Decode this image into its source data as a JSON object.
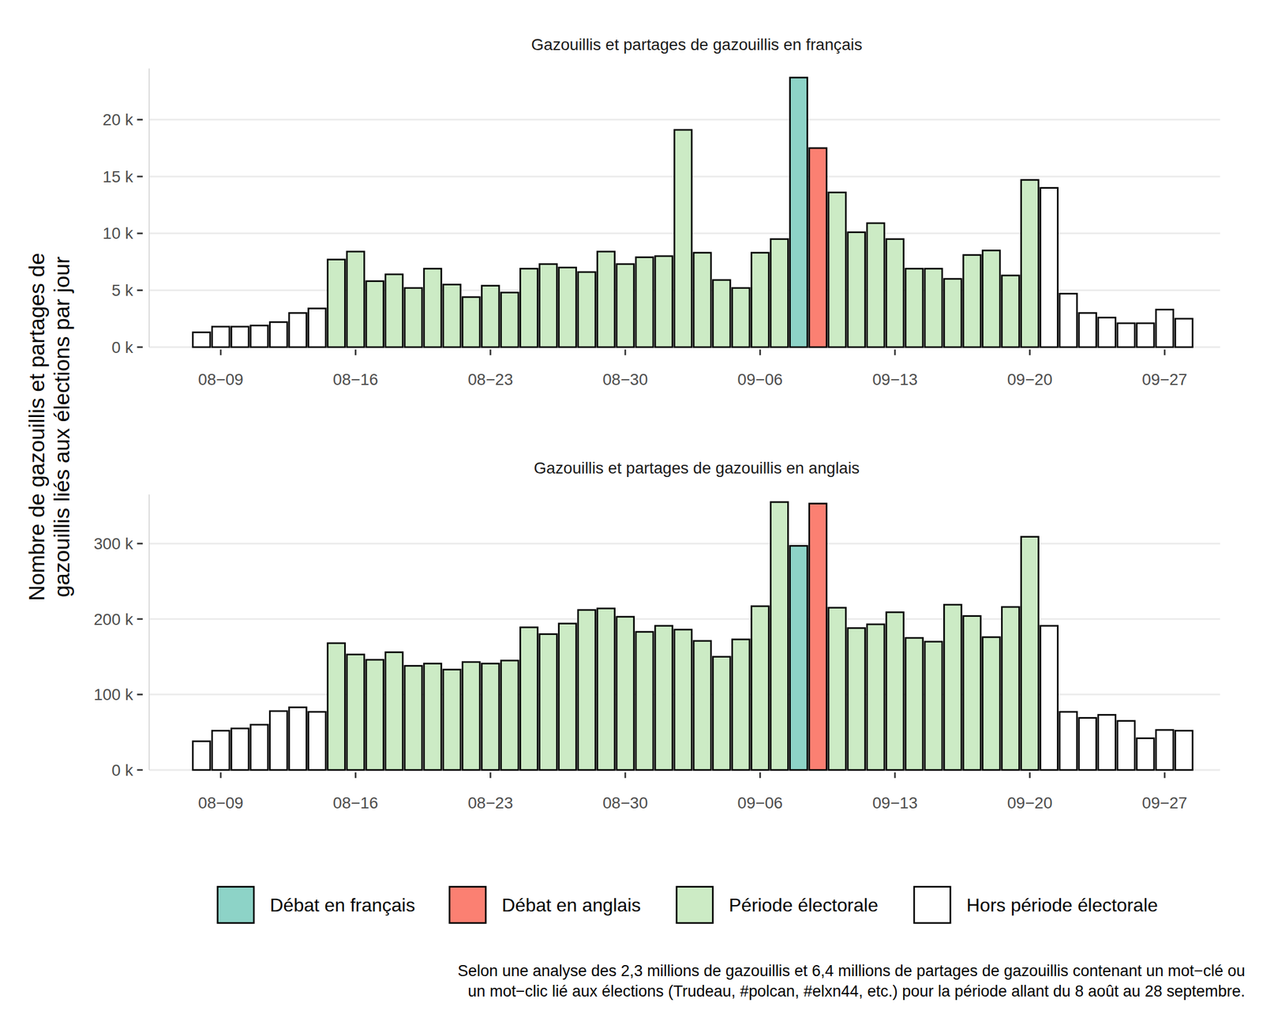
{
  "chart_data": [
    {
      "type": "bar",
      "title": "Gazouillis et partages de gazouillis en français",
      "categories": [
        null,
        "08−09",
        null,
        null,
        null,
        null,
        null,
        null,
        "08−16",
        null,
        null,
        null,
        null,
        null,
        null,
        "08−23",
        null,
        null,
        null,
        null,
        null,
        null,
        "08−30",
        null,
        null,
        null,
        null,
        null,
        null,
        "09−06",
        null,
        null,
        null,
        null,
        null,
        null,
        "09−13",
        null,
        null,
        null,
        null,
        null,
        null,
        "09−20",
        null,
        null,
        null,
        null,
        null,
        null,
        "09−27",
        null
      ],
      "values": [
        1300,
        1800,
        1800,
        1900,
        2200,
        3000,
        3400,
        7700,
        8400,
        5800,
        6400,
        5200,
        6900,
        5500,
        4400,
        5400,
        4800,
        6900,
        7300,
        7000,
        6600,
        8400,
        7300,
        7900,
        8000,
        19100,
        8300,
        5900,
        5200,
        8300,
        9500,
        23700,
        17500,
        13600,
        10100,
        10900,
        9500,
        6900,
        6900,
        6000,
        8100,
        8500,
        6300,
        14700,
        14000,
        4700,
        3000,
        2600,
        2100,
        2100,
        3300,
        2500
      ],
      "colors": [
        "#ffffff",
        "#ffffff",
        "#ffffff",
        "#ffffff",
        "#ffffff",
        "#ffffff",
        "#ffffff",
        "#ccebc5",
        "#ccebc5",
        "#ccebc5",
        "#ccebc5",
        "#ccebc5",
        "#ccebc5",
        "#ccebc5",
        "#ccebc5",
        "#ccebc5",
        "#ccebc5",
        "#ccebc5",
        "#ccebc5",
        "#ccebc5",
        "#ccebc5",
        "#ccebc5",
        "#ccebc5",
        "#ccebc5",
        "#ccebc5",
        "#ccebc5",
        "#ccebc5",
        "#ccebc5",
        "#ccebc5",
        "#ccebc5",
        "#ccebc5",
        "#8dd3c7",
        "#fb8072",
        "#ccebc5",
        "#ccebc5",
        "#ccebc5",
        "#ccebc5",
        "#ccebc5",
        "#ccebc5",
        "#ccebc5",
        "#ccebc5",
        "#ccebc5",
        "#ccebc5",
        "#ccebc5",
        "#ffffff",
        "#ffffff",
        "#ffffff",
        "#ffffff",
        "#ffffff",
        "#ffffff",
        "#ffffff",
        "#ffffff"
      ],
      "ylim": [
        0,
        24500
      ],
      "yticks": [
        {
          "value": 0,
          "label": "0 k"
        },
        {
          "value": 5000,
          "label": "5 k"
        },
        {
          "value": 10000,
          "label": "10 k"
        },
        {
          "value": 15000,
          "label": "15 k"
        },
        {
          "value": 20000,
          "label": "20 k"
        }
      ],
      "grid": true
    },
    {
      "type": "bar",
      "title": "Gazouillis et partages de gazouillis en anglais",
      "categories": [
        null,
        "08−09",
        null,
        null,
        null,
        null,
        null,
        null,
        "08−16",
        null,
        null,
        null,
        null,
        null,
        null,
        "08−23",
        null,
        null,
        null,
        null,
        null,
        null,
        "08−30",
        null,
        null,
        null,
        null,
        null,
        null,
        "09−06",
        null,
        null,
        null,
        null,
        null,
        null,
        "09−13",
        null,
        null,
        null,
        null,
        null,
        null,
        "09−20",
        null,
        null,
        null,
        null,
        null,
        null,
        "09−27",
        null
      ],
      "values": [
        38000,
        52000,
        55000,
        60000,
        78000,
        83000,
        77000,
        168000,
        153000,
        146000,
        156000,
        138000,
        141000,
        133000,
        143000,
        141000,
        145000,
        189000,
        180000,
        194000,
        212000,
        214000,
        203000,
        183000,
        191000,
        186000,
        171000,
        150000,
        173000,
        217000,
        355000,
        297000,
        353000,
        215000,
        188000,
        193000,
        209000,
        175000,
        170000,
        219000,
        204000,
        176000,
        216000,
        309000,
        191000,
        77000,
        69000,
        73000,
        65000,
        42000,
        53000,
        52000
      ],
      "colors": [
        "#ffffff",
        "#ffffff",
        "#ffffff",
        "#ffffff",
        "#ffffff",
        "#ffffff",
        "#ffffff",
        "#ccebc5",
        "#ccebc5",
        "#ccebc5",
        "#ccebc5",
        "#ccebc5",
        "#ccebc5",
        "#ccebc5",
        "#ccebc5",
        "#ccebc5",
        "#ccebc5",
        "#ccebc5",
        "#ccebc5",
        "#ccebc5",
        "#ccebc5",
        "#ccebc5",
        "#ccebc5",
        "#ccebc5",
        "#ccebc5",
        "#ccebc5",
        "#ccebc5",
        "#ccebc5",
        "#ccebc5",
        "#ccebc5",
        "#ccebc5",
        "#8dd3c7",
        "#fb8072",
        "#ccebc5",
        "#ccebc5",
        "#ccebc5",
        "#ccebc5",
        "#ccebc5",
        "#ccebc5",
        "#ccebc5",
        "#ccebc5",
        "#ccebc5",
        "#ccebc5",
        "#ccebc5",
        "#ffffff",
        "#ffffff",
        "#ffffff",
        "#ffffff",
        "#ffffff",
        "#ffffff",
        "#ffffff",
        "#ffffff"
      ],
      "ylim": [
        0,
        365000
      ],
      "yticks": [
        {
          "value": 0,
          "label": "0 k"
        },
        {
          "value": 100000,
          "label": "100 k"
        },
        {
          "value": 200000,
          "label": "200 k"
        },
        {
          "value": 300000,
          "label": "300 k"
        }
      ],
      "grid": true
    }
  ],
  "y_label": [
    "Nombre de gazouillis et partages de",
    "gazouillis liés aux élections par jour"
  ],
  "legend": {
    "position": "bottom",
    "entries": [
      {
        "name": "Débat en français",
        "color": "#8dd3c7"
      },
      {
        "name": "Débat en anglais",
        "color": "#fb8072"
      },
      {
        "name": "Période électorale",
        "color": "#ccebc5"
      },
      {
        "name": "Hors période électorale",
        "color": "#ffffff"
      }
    ]
  },
  "caption": [
    "Selon une analyse des 2,3 millions de gazouillis et 6,4 millions de partages de gazouillis contenant un mot−clé ou",
    "un mot−clic lié aux élections (Trudeau, #polcan, #elxn44, etc.) pour la période allant du 8 août au 28 septembre."
  ]
}
